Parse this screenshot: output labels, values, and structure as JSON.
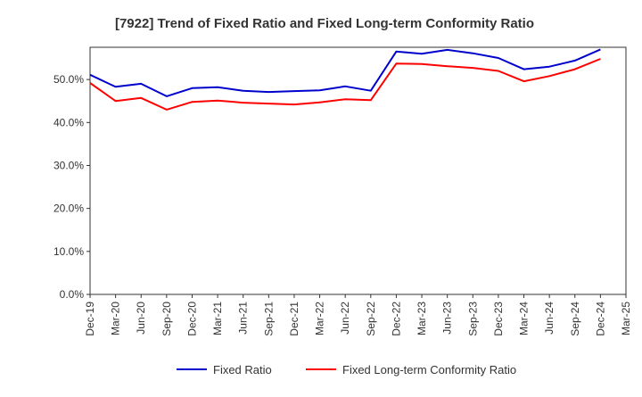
{
  "chart_data": {
    "type": "line",
    "title": "[7922]  Trend of Fixed Ratio and Fixed Long-term Conformity Ratio",
    "xlabel": "",
    "ylabel": "",
    "categories": [
      "Dec-19",
      "Mar-20",
      "Jun-20",
      "Sep-20",
      "Dec-20",
      "Mar-21",
      "Jun-21",
      "Sep-21",
      "Dec-21",
      "Mar-22",
      "Jun-22",
      "Sep-22",
      "Dec-22",
      "Mar-23",
      "Jun-23",
      "Sep-23",
      "Dec-23",
      "Mar-24",
      "Jun-24",
      "Sep-24",
      "Dec-24",
      "Mar-25"
    ],
    "ylim": [
      0,
      57.5
    ],
    "yticks": [
      0,
      10,
      20,
      30,
      40,
      50
    ],
    "ytick_labels": [
      "0.0%",
      "10.0%",
      "20.0%",
      "30.0%",
      "40.0%",
      "50.0%"
    ],
    "grid": true,
    "legend_position": "bottom",
    "series": [
      {
        "name": "Fixed Ratio",
        "color": "#0000cc",
        "values": [
          51.1,
          48.3,
          49.0,
          46.1,
          48.0,
          48.2,
          47.4,
          47.1,
          47.3,
          47.5,
          48.4,
          47.4,
          56.5,
          56.0,
          56.9,
          56.1,
          55.0,
          52.4,
          53.0,
          54.4,
          57.0,
          null
        ]
      },
      {
        "name": "Fixed Long-term Conformity Ratio",
        "color": "#ff0000",
        "values": [
          49.2,
          45.0,
          45.7,
          43.0,
          44.8,
          45.1,
          44.6,
          44.4,
          44.2,
          44.7,
          45.4,
          45.2,
          53.7,
          53.6,
          53.1,
          52.7,
          52.0,
          49.6,
          50.8,
          52.4,
          54.8,
          null
        ]
      }
    ]
  }
}
